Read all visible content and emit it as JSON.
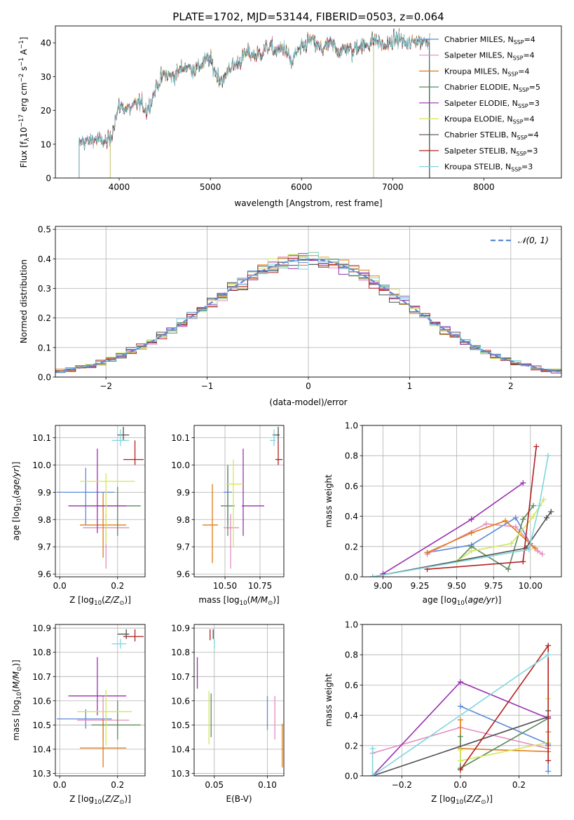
{
  "figure_title": "PLATE=1702, MJD=53144, FIBERID=0503, z=0.064",
  "colors": {
    "Chabrier MILES": "#5b8ad8",
    "Salpeter MILES": "#e48cc0",
    "Kroupa MILES": "#e07a12",
    "Chabrier ELODIE": "#5e8a5e",
    "Salpeter ELODIE": "#9a2fb0",
    "Kroupa ELODIE": "#d2e858",
    "Chabrier STELIB": "#4f4f4f",
    "Salpeter STELIB": "#b31e1e",
    "Kroupa STELIB": "#7fd6dd"
  },
  "chart_data": [
    {
      "id": "spectrum",
      "type": "line",
      "title": "PLATE=1702, MJD=53144, FIBERID=0503, z=0.064",
      "xlabel": "wavelength [Angstrom, rest frame]",
      "ylabel": "Flux [f_λ 10^-17 erg cm^-2 s^-1 A^-1]",
      "xlim": [
        3300,
        8850
      ],
      "ylim": [
        0,
        45
      ],
      "xticks": [
        4000,
        5000,
        6000,
        7000,
        8000
      ],
      "yticks": [
        0,
        10,
        20,
        30,
        40
      ],
      "grid": false,
      "legend_position": "right",
      "series": [
        {
          "name": "Chabrier MILES, N_SSP=4",
          "x_range": [
            3560,
            7410
          ]
        },
        {
          "name": "Salpeter MILES, N_SSP=4",
          "x_range": [
            3560,
            7410
          ]
        },
        {
          "name": "Kroupa MILES, N_SSP=4",
          "x_range": [
            3560,
            7410
          ]
        },
        {
          "name": "Chabrier ELODIE, N_SSP=5",
          "x_range": [
            3900,
            6790
          ]
        },
        {
          "name": "Salpeter ELODIE, N_SSP=3",
          "x_range": [
            3900,
            6790
          ]
        },
        {
          "name": "Kroupa ELODIE, N_SSP=4",
          "x_range": [
            3900,
            6790
          ]
        },
        {
          "name": "Chabrier STELIB, N_SSP=4",
          "x_range": [
            3560,
            7400
          ]
        },
        {
          "name": "Salpeter STELIB, N_SSP=3",
          "x_range": [
            3560,
            7400
          ]
        },
        {
          "name": "Kroupa STELIB, N_SSP=3",
          "x_range": [
            3560,
            7410
          ]
        }
      ],
      "continuum": {
        "x": [
          3560,
          3600,
          3700,
          3800,
          3850,
          3900,
          3950,
          4000,
          4100,
          4200,
          4300,
          4400,
          4500,
          4600,
          4700,
          4800,
          4900,
          5000,
          5100,
          5150,
          5200,
          5300,
          5400,
          5500,
          5600,
          5700,
          5800,
          5890,
          5950,
          6000,
          6100,
          6200,
          6300,
          6400,
          6500,
          6563,
          6600,
          6700,
          6800,
          6900,
          7000,
          7100,
          7200,
          7300,
          7400
        ],
        "y": [
          9,
          11,
          12,
          10,
          11,
          12,
          17,
          20,
          21,
          22,
          20,
          27,
          30,
          31,
          32,
          33,
          33,
          35,
          30,
          28,
          32,
          35,
          36,
          37,
          38,
          38,
          39,
          33,
          38,
          39,
          40,
          39,
          39,
          38,
          39,
          36,
          39,
          40,
          40,
          40,
          40,
          41,
          40,
          40,
          42
        ]
      }
    },
    {
      "id": "residuals",
      "type": "histogram",
      "xlabel": "(data-model)/error",
      "ylabel": "Normed distribution",
      "xlim": [
        -2.5,
        2.5
      ],
      "ylim": [
        0,
        0.51
      ],
      "xticks": [
        -2,
        -1,
        0,
        1,
        2
      ],
      "yticks": [
        0.0,
        0.1,
        0.2,
        0.3,
        0.4,
        0.5
      ],
      "grid": true,
      "legend_position": "top-right",
      "reference_curve": {
        "name": "N(0,1)",
        "mean": 0,
        "sigma": 1
      },
      "bin_width": 0.1
    },
    {
      "id": "age_vs_Z",
      "type": "scatter",
      "xlabel": "Z [log10(Z/Z☉)]",
      "ylabel": "age [log10(age/yr)]",
      "xlim": [
        -0.015,
        0.295
      ],
      "ylim": [
        9.59,
        10.145
      ],
      "xticks": [
        0.0,
        0.2
      ],
      "yticks": [
        9.6,
        9.7,
        9.8,
        9.9,
        10.0,
        10.1
      ],
      "grid": true,
      "errorbars": [
        {
          "name": "Chabrier MILES",
          "x": 0.09,
          "xerr": [
            0.1,
            0.1
          ],
          "y": 9.9,
          "yerr": [
            0.12,
            0.09
          ]
        },
        {
          "name": "Salpeter MILES",
          "x": 0.16,
          "xerr": [
            0.08,
            0.08
          ],
          "y": 9.77,
          "yerr": [
            0.15,
            0.05
          ]
        },
        {
          "name": "Kroupa MILES",
          "x": 0.15,
          "xerr": [
            0.08,
            0.08
          ],
          "y": 9.78,
          "yerr": [
            0.12,
            0.12
          ]
        },
        {
          "name": "Chabrier ELODIE",
          "x": 0.2,
          "xerr": [
            0.09,
            0.08
          ],
          "y": 9.85,
          "yerr": [
            0.11,
            0.07
          ]
        },
        {
          "name": "Salpeter ELODIE",
          "x": 0.13,
          "xerr": [
            0.1,
            0.1
          ],
          "y": 9.85,
          "yerr": [
            0.1,
            0.21
          ]
        },
        {
          "name": "Kroupa ELODIE",
          "x": 0.16,
          "xerr": [
            0.09,
            0.1
          ],
          "y": 9.94,
          "yerr": [
            0.23,
            0.03
          ]
        },
        {
          "name": "Chabrier STELIB",
          "x": 0.22,
          "xerr": [
            0.02,
            0.02
          ],
          "y": 10.11,
          "yerr": [
            0.02,
            0.03
          ]
        },
        {
          "name": "Salpeter STELIB",
          "x": 0.26,
          "xerr": [
            0.04,
            0.03
          ],
          "y": 10.02,
          "yerr": [
            0.02,
            0.07
          ]
        },
        {
          "name": "Kroupa STELIB",
          "x": 0.21,
          "xerr": [
            0.03,
            0.03
          ],
          "y": 10.09,
          "yerr": [
            0.02,
            0.04
          ]
        }
      ]
    },
    {
      "id": "age_vs_mass",
      "type": "scatter",
      "xlabel": "mass [log10(M/M☉)]",
      "ylabel": "",
      "xlim": [
        10.28,
        10.92
      ],
      "ylim": [
        9.59,
        10.145
      ],
      "xticks": [
        10.5,
        10.75
      ],
      "yticks": [
        9.6,
        9.7,
        9.8,
        9.9,
        10.0,
        10.1
      ],
      "grid": true,
      "errorbars": [
        {
          "name": "Chabrier MILES",
          "x": 10.52,
          "xerr": [
            0.03,
            0.03
          ],
          "y": 9.9,
          "yerr": [
            0.12,
            0.09
          ]
        },
        {
          "name": "Salpeter MILES",
          "x": 10.54,
          "xerr": [
            0.05,
            0.06
          ],
          "y": 9.77,
          "yerr": [
            0.15,
            0.05
          ]
        },
        {
          "name": "Kroupa MILES",
          "x": 10.41,
          "xerr": [
            0.07,
            0.04
          ],
          "y": 9.78,
          "yerr": [
            0.14,
            0.15
          ]
        },
        {
          "name": "Chabrier ELODIE",
          "x": 10.52,
          "xerr": [
            0.05,
            0.05
          ],
          "y": 9.85,
          "yerr": [
            0.11,
            0.15
          ]
        },
        {
          "name": "Salpeter ELODIE",
          "x": 10.63,
          "xerr": [
            0.01,
            0.15
          ],
          "y": 9.85,
          "yerr": [
            0.11,
            0.21
          ]
        },
        {
          "name": "Kroupa ELODIE",
          "x": 10.56,
          "xerr": [
            0.05,
            0.07
          ],
          "y": 9.93,
          "yerr": [
            0.23,
            0.09
          ]
        },
        {
          "name": "Chabrier STELIB",
          "x": 10.88,
          "xerr": [
            0.04,
            0.01
          ],
          "y": 10.11,
          "yerr": [
            0.02,
            0.03
          ]
        },
        {
          "name": "Salpeter STELIB",
          "x": 10.88,
          "xerr": [
            0.02,
            0.03
          ],
          "y": 10.02,
          "yerr": [
            0.02,
            0.07
          ]
        },
        {
          "name": "Kroupa STELIB",
          "x": 10.85,
          "xerr": [
            0.03,
            0.01
          ],
          "y": 10.09,
          "yerr": [
            0.02,
            0.04
          ]
        }
      ]
    },
    {
      "id": "weight_vs_age",
      "type": "line",
      "xlabel": "age [log10(age/yr)]",
      "ylabel": "mass weight",
      "xlim": [
        8.86,
        10.21
      ],
      "ylim": [
        0,
        1.0
      ],
      "xticks": [
        9.0,
        9.25,
        9.5,
        9.75,
        10.0
      ],
      "yticks": [
        0.0,
        0.2,
        0.4,
        0.6,
        0.8,
        1.0
      ],
      "grid": true,
      "series": [
        {
          "name": "Chabrier MILES",
          "x": [
            9.3,
            9.6,
            9.9,
            10.0
          ],
          "y": [
            0.16,
            0.21,
            0.39,
            0.22
          ]
        },
        {
          "name": "Salpeter MILES",
          "x": [
            9.3,
            9.7,
            9.9,
            10.05,
            10.08
          ],
          "y": [
            0.15,
            0.35,
            0.33,
            0.17,
            0.15
          ]
        },
        {
          "name": "Kroupa MILES",
          "x": [
            9.3,
            9.6,
            9.83,
            10.03
          ],
          "y": [
            0.16,
            0.29,
            0.37,
            0.19
          ]
        },
        {
          "name": "Chabrier ELODIE",
          "x": [
            9.5,
            9.6,
            9.85,
            9.95,
            10.02
          ],
          "y": [
            0.1,
            0.2,
            0.05,
            0.38,
            0.47
          ]
        },
        {
          "name": "Salpeter ELODIE",
          "x": [
            9.0,
            9.6,
            9.95
          ],
          "y": [
            0.02,
            0.38,
            0.62
          ]
        },
        {
          "name": "Kroupa ELODIE",
          "x": [
            9.5,
            9.6,
            9.87,
            10.02,
            10.09
          ],
          "y": [
            0.1,
            0.17,
            0.22,
            0.4,
            0.51
          ]
        },
        {
          "name": "Chabrier STELIB",
          "x": [
            8.93,
            9.97,
            10.11,
            10.14
          ],
          "y": [
            0.0,
            0.19,
            0.39,
            0.43
          ]
        },
        {
          "name": "Salpeter STELIB",
          "x": [
            9.3,
            9.95,
            10.04
          ],
          "y": [
            0.05,
            0.1,
            0.86
          ]
        },
        {
          "name": "Kroupa STELIB",
          "x": [
            8.93,
            9.99,
            10.06,
            10.12
          ],
          "y": [
            0.0,
            0.18,
            0.47,
            0.8
          ]
        }
      ]
    },
    {
      "id": "mass_vs_Z",
      "type": "scatter",
      "xlabel": "Z [log10(Z/Z☉)]",
      "ylabel": "mass [log10(M/M☉)]",
      "xlim": [
        -0.015,
        0.295
      ],
      "ylim": [
        10.29,
        10.915
      ],
      "xticks": [
        0.0,
        0.2
      ],
      "yticks": [
        10.3,
        10.4,
        10.5,
        10.6,
        10.7,
        10.8,
        10.9
      ],
      "grid": true,
      "errorbars": [
        {
          "name": "Chabrier MILES",
          "x": 0.09,
          "xerr": [
            0.1,
            0.09
          ],
          "y": 10.525,
          "yerr": [
            0.04,
            0.04
          ]
        },
        {
          "name": "Salpeter MILES",
          "x": 0.15,
          "xerr": [
            0.09,
            0.09
          ],
          "y": 10.52,
          "yerr": [
            0.08,
            0.1
          ]
        },
        {
          "name": "Kroupa MILES",
          "x": 0.15,
          "xerr": [
            0.08,
            0.08
          ],
          "y": 10.405,
          "yerr": [
            0.08,
            0.12
          ]
        },
        {
          "name": "Chabrier ELODIE",
          "x": 0.2,
          "xerr": [
            0.09,
            0.08
          ],
          "y": 10.5,
          "yerr": [
            0.06,
            0.1
          ]
        },
        {
          "name": "Salpeter ELODIE",
          "x": 0.13,
          "xerr": [
            0.1,
            0.1
          ],
          "y": 10.62,
          "yerr": [
            0.08,
            0.16
          ]
        },
        {
          "name": "Kroupa ELODIE",
          "x": 0.16,
          "xerr": [
            0.1,
            0.09
          ],
          "y": 10.555,
          "yerr": [
            0.14,
            0.09
          ]
        },
        {
          "name": "Chabrier STELIB",
          "x": 0.23,
          "xerr": [
            0.03,
            0.01
          ],
          "y": 10.875,
          "yerr": [
            0.02,
            0.02
          ]
        },
        {
          "name": "Salpeter STELIB",
          "x": 0.26,
          "xerr": [
            0.04,
            0.03
          ],
          "y": 10.865,
          "yerr": [
            0.02,
            0.03
          ]
        },
        {
          "name": "Kroupa STELIB",
          "x": 0.21,
          "xerr": [
            0.03,
            0.02
          ],
          "y": 10.835,
          "yerr": [
            0.02,
            0.02
          ]
        }
      ]
    },
    {
      "id": "mass_vs_ebv",
      "type": "scatter",
      "xlabel": "E(B-V)",
      "ylabel": "",
      "xlim": [
        0.031,
        0.1155
      ],
      "ylim": [
        10.29,
        10.915
      ],
      "xticks": [
        0.05,
        0.1
      ],
      "yticks": [
        10.3,
        10.4,
        10.5,
        10.6,
        10.7,
        10.8,
        10.9
      ],
      "grid": true,
      "errorbars": [
        {
          "name": "Chabrier MILES",
          "x": 0.1,
          "y": 10.54,
          "yerr": [
            0.06,
            0.08
          ]
        },
        {
          "name": "Salpeter MILES",
          "x": 0.107,
          "y": 10.52,
          "yerr": [
            0.08,
            0.1
          ]
        },
        {
          "name": "Kroupa MILES",
          "x": 0.114,
          "y": 10.415,
          "yerr": [
            0.09,
            0.09
          ]
        },
        {
          "name": "Chabrier ELODIE",
          "x": 0.047,
          "y": 10.53,
          "yerr": [
            0.08,
            0.1
          ]
        },
        {
          "name": "Salpeter ELODIE",
          "x": 0.034,
          "y": 10.71,
          "yerr": [
            0.06,
            0.07
          ]
        },
        {
          "name": "Kroupa ELODIE",
          "x": 0.045,
          "y": 10.53,
          "yerr": [
            0.11,
            0.11
          ]
        },
        {
          "name": "Chabrier STELIB",
          "x": 0.049,
          "y": 10.875,
          "yerr": [
            0.02,
            0.02
          ]
        },
        {
          "name": "Salpeter STELIB",
          "x": 0.046,
          "y": 10.875,
          "yerr": [
            0.025,
            0.02
          ]
        },
        {
          "name": "Kroupa STELIB",
          "x": 0.05,
          "y": 10.835,
          "yerr": [
            0.02,
            0.02
          ]
        }
      ]
    },
    {
      "id": "weight_vs_Z",
      "type": "line",
      "xlabel": "Z [log10(Z/Z☉)]",
      "ylabel": "mass weight",
      "xlim": [
        -0.335,
        0.345
      ],
      "ylim": [
        0,
        1.0
      ],
      "xticks": [
        -0.2,
        0.0,
        0.2
      ],
      "yticks": [
        0.0,
        0.2,
        0.4,
        0.6,
        0.8,
        1.0
      ],
      "grid": true,
      "series": [
        {
          "name": "Chabrier MILES",
          "x": [
            0.0,
            0.3,
            0.3
          ],
          "y": [
            0.46,
            0.21,
            0.03
          ]
        },
        {
          "name": "Salpeter MILES",
          "x": [
            -0.3,
            0.0,
            0.3
          ],
          "y": [
            0.15,
            0.32,
            0.18
          ]
        },
        {
          "name": "Kroupa MILES",
          "x": [
            0.0,
            0.0,
            0.3,
            0.3
          ],
          "y": [
            0.37,
            0.18,
            0.16,
            0.29
          ]
        },
        {
          "name": "Chabrier ELODIE",
          "x": [
            0.0,
            0.0,
            0.3,
            0.3
          ],
          "y": [
            0.26,
            0.05,
            0.38,
            0.2
          ]
        },
        {
          "name": "Salpeter ELODIE",
          "x": [
            -0.3,
            0.0,
            0.3
          ],
          "y": [
            0.0,
            0.62,
            0.38
          ]
        },
        {
          "name": "Kroupa ELODIE",
          "x": [
            0.0,
            0.0,
            0.3,
            0.3
          ],
          "y": [
            0.17,
            0.1,
            0.22,
            0.51
          ]
        },
        {
          "name": "Chabrier STELIB",
          "x": [
            -0.3,
            0.3,
            0.3
          ],
          "y": [
            0.0,
            0.39,
            0.43
          ]
        },
        {
          "name": "Salpeter STELIB",
          "x": [
            0.0,
            0.3,
            0.3
          ],
          "y": [
            0.04,
            0.86,
            0.1
          ]
        },
        {
          "name": "Kroupa STELIB",
          "x": [
            -0.3,
            -0.3,
            0.3
          ],
          "y": [
            0.18,
            0.0,
            0.8
          ]
        }
      ]
    }
  ]
}
